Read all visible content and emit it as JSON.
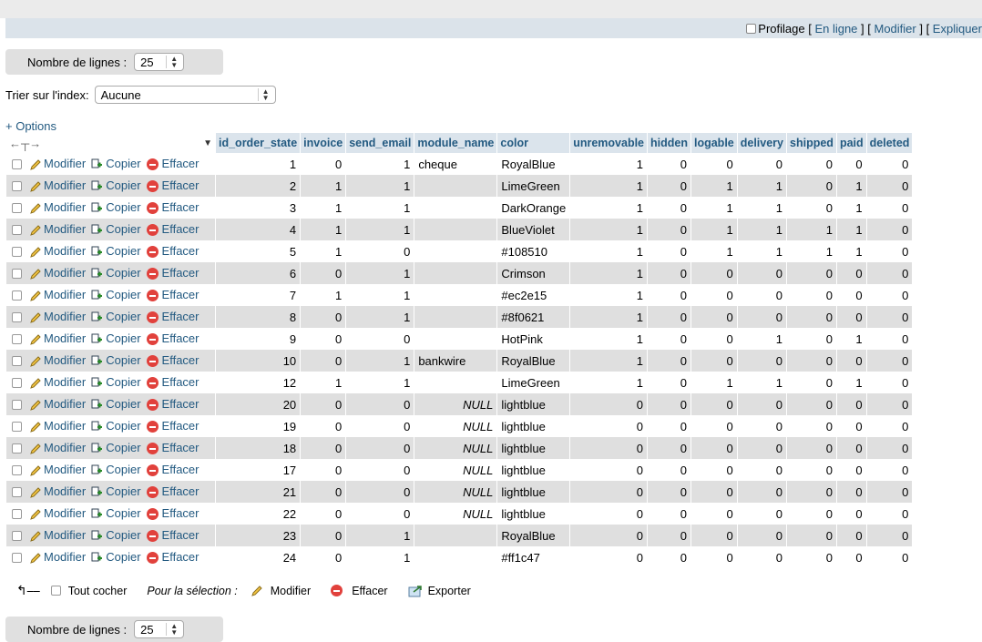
{
  "profiling_bar": {
    "label": "Profilage",
    "links": [
      "En ligne",
      "Modifier",
      "Expliquer"
    ]
  },
  "rows_control": {
    "label": "Nombre de lignes :",
    "value": "25"
  },
  "sort": {
    "label": "Trier sur l'index:",
    "value": "Aucune"
  },
  "options_label": "+ Options",
  "table": {
    "columns": [
      "id_order_state",
      "invoice",
      "send_email",
      "module_name",
      "color",
      "unremovable",
      "hidden",
      "logable",
      "delivery",
      "shipped",
      "paid",
      "deleted"
    ],
    "actions": {
      "edit": "Modifier",
      "copy": "Copier",
      "delete": "Effacer"
    },
    "rows": [
      [
        "1",
        "0",
        "1",
        "cheque",
        "RoyalBlue",
        "1",
        "0",
        "0",
        "0",
        "0",
        "0",
        "0"
      ],
      [
        "2",
        "1",
        "1",
        "",
        "LimeGreen",
        "1",
        "0",
        "1",
        "1",
        "0",
        "1",
        "0"
      ],
      [
        "3",
        "1",
        "1",
        "",
        "DarkOrange",
        "1",
        "0",
        "1",
        "1",
        "0",
        "1",
        "0"
      ],
      [
        "4",
        "1",
        "1",
        "",
        "BlueViolet",
        "1",
        "0",
        "1",
        "1",
        "1",
        "1",
        "0"
      ],
      [
        "5",
        "1",
        "0",
        "",
        "#108510",
        "1",
        "0",
        "1",
        "1",
        "1",
        "1",
        "0"
      ],
      [
        "6",
        "0",
        "1",
        "",
        "Crimson",
        "1",
        "0",
        "0",
        "0",
        "0",
        "0",
        "0"
      ],
      [
        "7",
        "1",
        "1",
        "",
        "#ec2e15",
        "1",
        "0",
        "0",
        "0",
        "0",
        "0",
        "0"
      ],
      [
        "8",
        "0",
        "1",
        "",
        "#8f0621",
        "1",
        "0",
        "0",
        "0",
        "0",
        "0",
        "0"
      ],
      [
        "9",
        "0",
        "0",
        "",
        "HotPink",
        "1",
        "0",
        "0",
        "1",
        "0",
        "1",
        "0"
      ],
      [
        "10",
        "0",
        "1",
        "bankwire",
        "RoyalBlue",
        "1",
        "0",
        "0",
        "0",
        "0",
        "0",
        "0"
      ],
      [
        "12",
        "1",
        "1",
        "",
        "LimeGreen",
        "1",
        "0",
        "1",
        "1",
        "0",
        "1",
        "0"
      ],
      [
        "20",
        "0",
        "0",
        "NULL",
        "lightblue",
        "0",
        "0",
        "0",
        "0",
        "0",
        "0",
        "0"
      ],
      [
        "19",
        "0",
        "0",
        "NULL",
        "lightblue",
        "0",
        "0",
        "0",
        "0",
        "0",
        "0",
        "0"
      ],
      [
        "18",
        "0",
        "0",
        "NULL",
        "lightblue",
        "0",
        "0",
        "0",
        "0",
        "0",
        "0",
        "0"
      ],
      [
        "17",
        "0",
        "0",
        "NULL",
        "lightblue",
        "0",
        "0",
        "0",
        "0",
        "0",
        "0",
        "0"
      ],
      [
        "21",
        "0",
        "0",
        "NULL",
        "lightblue",
        "0",
        "0",
        "0",
        "0",
        "0",
        "0",
        "0"
      ],
      [
        "22",
        "0",
        "0",
        "NULL",
        "lightblue",
        "0",
        "0",
        "0",
        "0",
        "0",
        "0",
        "0"
      ],
      [
        "23",
        "0",
        "1",
        "",
        "RoyalBlue",
        "0",
        "0",
        "0",
        "0",
        "0",
        "0",
        "0"
      ],
      [
        "24",
        "0",
        "1",
        "",
        "#ff1c47",
        "0",
        "0",
        "0",
        "0",
        "0",
        "0",
        "0"
      ]
    ]
  },
  "bulk": {
    "check_all": "Tout cocher",
    "with_selected": "Pour la sélection :",
    "edit": "Modifier",
    "delete": "Effacer",
    "export": "Exporter"
  },
  "colors": {
    "link": "#235a81",
    "header_bg": "#dbe4ec",
    "even_row": "#dfdfdf",
    "delete_red": "#e1413c"
  }
}
